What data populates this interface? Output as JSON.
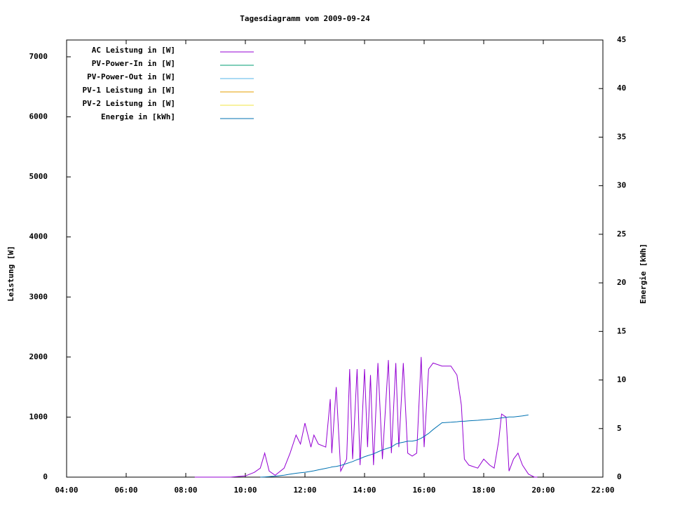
{
  "chart_data": {
    "type": "line",
    "title": "Tagesdiagramm vom 2009-09-24",
    "y_label": "Leistung [W]",
    "y2_label": "Energie [kWh]",
    "xlim": [
      4,
      22
    ],
    "xticks": [
      {
        "value": 4,
        "label": "04:00"
      },
      {
        "value": 6,
        "label": "06:00"
      },
      {
        "value": 8,
        "label": "08:00"
      },
      {
        "value": 10,
        "label": "10:00"
      },
      {
        "value": 12,
        "label": "12:00"
      },
      {
        "value": 14,
        "label": "14:00"
      },
      {
        "value": 16,
        "label": "16:00"
      },
      {
        "value": 18,
        "label": "18:00"
      },
      {
        "value": 20,
        "label": "20:00"
      },
      {
        "value": 22,
        "label": "22:00"
      }
    ],
    "ylim": [
      0,
      7280
    ],
    "yticks": [
      0,
      1000,
      2000,
      3000,
      4000,
      5000,
      6000,
      7000
    ],
    "y2lim": [
      0,
      45
    ],
    "y2ticks": [
      0,
      5,
      10,
      15,
      20,
      25,
      30,
      35,
      40,
      45
    ],
    "legend": "top-left",
    "x": [
      8.3,
      9.5,
      10.0,
      10.3,
      10.5,
      10.65,
      10.8,
      11.0,
      11.3,
      11.5,
      11.7,
      11.85,
      12.0,
      12.2,
      12.3,
      12.45,
      12.7,
      12.85,
      12.9,
      13.05,
      13.2,
      13.4,
      13.5,
      13.6,
      13.75,
      13.85,
      14.0,
      14.1,
      14.2,
      14.3,
      14.45,
      14.6,
      14.8,
      14.9,
      15.05,
      15.15,
      15.3,
      15.45,
      15.6,
      15.75,
      15.9,
      16.0,
      16.15,
      16.3,
      16.6,
      16.9,
      17.1,
      17.25,
      17.35,
      17.5,
      17.8,
      18.0,
      18.2,
      18.35,
      18.5,
      18.6,
      18.75,
      18.85,
      19.0,
      19.15,
      19.3,
      19.5,
      19.7,
      19.8
    ],
    "series": [
      {
        "name": "AC Leistung in [W]",
        "color": "#9400d3",
        "values": [
          0,
          0,
          20,
          80,
          150,
          400,
          100,
          30,
          150,
          400,
          700,
          550,
          900,
          500,
          700,
          550,
          500,
          1300,
          400,
          1500,
          100,
          300,
          1800,
          300,
          1800,
          200,
          1800,
          500,
          1700,
          200,
          1900,
          300,
          1950,
          400,
          1900,
          500,
          1900,
          400,
          350,
          400,
          2000,
          500,
          1800,
          1900,
          1850,
          1850,
          1700,
          1200,
          300,
          200,
          150,
          300,
          200,
          150,
          600,
          1050,
          1000,
          100,
          300,
          400,
          200,
          50,
          0,
          0
        ]
      },
      {
        "name": "PV-Power-In in [W]",
        "color": "#009e73",
        "values": [
          null,
          null,
          null,
          null,
          null,
          null,
          null,
          null,
          null,
          null,
          null,
          null,
          null,
          null,
          null,
          null,
          null,
          null,
          null,
          null,
          null,
          null,
          null,
          null,
          null,
          null,
          null,
          null,
          null,
          null,
          null,
          null,
          null,
          null,
          null,
          null,
          null,
          null,
          null,
          null,
          null,
          null,
          null,
          null,
          null,
          null,
          null,
          null,
          null,
          null,
          null,
          null,
          null,
          null,
          null,
          null,
          null,
          null,
          null,
          null,
          null,
          null,
          null,
          null
        ]
      },
      {
        "name": "PV-Power-Out in [W]",
        "color": "#56b4e9",
        "values": [
          null,
          null,
          null,
          null,
          null,
          null,
          null,
          null,
          null,
          null,
          null,
          null,
          null,
          null,
          null,
          null,
          null,
          null,
          null,
          null,
          null,
          null,
          null,
          null,
          null,
          null,
          null,
          null,
          null,
          null,
          null,
          null,
          null,
          null,
          null,
          null,
          null,
          null,
          null,
          null,
          null,
          null,
          null,
          null,
          null,
          null,
          null,
          null,
          null,
          null,
          null,
          null,
          null,
          null,
          null,
          null,
          null,
          null,
          null,
          null,
          null,
          null,
          null,
          null
        ]
      },
      {
        "name": "PV-1 Leistung in [W]",
        "color": "#e69f00",
        "values": [
          null,
          null,
          null,
          null,
          null,
          null,
          null,
          null,
          null,
          null,
          null,
          null,
          null,
          null,
          null,
          null,
          null,
          null,
          null,
          null,
          null,
          null,
          null,
          null,
          null,
          null,
          null,
          null,
          null,
          null,
          null,
          null,
          null,
          null,
          null,
          null,
          null,
          null,
          null,
          null,
          null,
          null,
          null,
          null,
          null,
          null,
          null,
          null,
          null,
          null,
          null,
          null,
          null,
          null,
          null,
          null,
          null,
          null,
          null,
          null,
          null,
          null,
          null,
          null
        ]
      },
      {
        "name": "PV-2 Leistung in [W]",
        "color": "#f0e442",
        "values": [
          null,
          null,
          null,
          null,
          null,
          null,
          null,
          null,
          null,
          null,
          null,
          null,
          null,
          null,
          null,
          null,
          null,
          null,
          null,
          null,
          null,
          null,
          null,
          null,
          null,
          null,
          null,
          null,
          null,
          null,
          null,
          null,
          null,
          null,
          null,
          null,
          null,
          null,
          null,
          null,
          null,
          null,
          null,
          null,
          null,
          null,
          null,
          null,
          null,
          null,
          null,
          null,
          null,
          null,
          null,
          null,
          null,
          null,
          null,
          null,
          null,
          null,
          null,
          null
        ]
      },
      {
        "name": "Energie in [kWh]",
        "color": "#0072b2",
        "axis": "y2",
        "values": [
          null,
          null,
          null,
          null,
          0,
          0.02,
          0.05,
          0.1,
          0.2,
          0.3,
          0.4,
          0.45,
          0.5,
          0.6,
          0.65,
          0.75,
          0.9,
          1.0,
          1.05,
          1.1,
          1.2,
          1.4,
          1.5,
          1.6,
          1.8,
          1.9,
          2.1,
          2.2,
          2.3,
          2.4,
          2.6,
          2.8,
          3.0,
          3.1,
          3.4,
          3.5,
          3.6,
          3.7,
          3.7,
          3.8,
          4.0,
          4.2,
          4.5,
          4.9,
          5.6,
          5.65,
          5.7,
          5.75,
          5.75,
          5.8,
          5.85,
          5.9,
          5.95,
          6.0,
          6.05,
          6.1,
          6.15,
          6.2,
          6.2,
          6.25,
          6.3,
          6.4,
          null,
          null
        ]
      }
    ]
  }
}
